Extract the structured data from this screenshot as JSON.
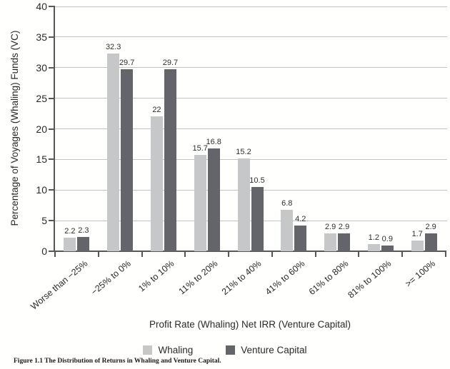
{
  "figure": {
    "caption": "Figure 1.1 The Distribution of Returns in Whaling and Venture Capital."
  },
  "chart_data": {
    "type": "bar",
    "title": "",
    "categories": [
      "Worse than −25%",
      "−25% to 0%",
      "1% to 10%",
      "11% to 20%",
      "21% to 40%",
      "41% to 60%",
      "61% to 80%",
      "81% to 100%",
      ">= 100%"
    ],
    "series": [
      {
        "name": "Whaling",
        "color": "#c5c7c9",
        "values": [
          2.2,
          32.3,
          22,
          15.7,
          15.2,
          6.8,
          2.9,
          1.2,
          1.7
        ]
      },
      {
        "name": "Venture Capital",
        "color": "#63656a",
        "values": [
          2.3,
          29.7,
          29.7,
          16.8,
          10.5,
          4.2,
          2.9,
          0.9,
          2.9
        ]
      }
    ],
    "xlabel": "Profit Rate (Whaling) Net IRR (Venture Capital)",
    "ylabel": "Percentage of Voyages (Whaling) Funds (VC)",
    "ylim": [
      0,
      40
    ],
    "ytick_step": 5,
    "grid": true,
    "legend_position": "bottom",
    "colors": {
      "grid": "#c3c3c3",
      "axis": "#55575b",
      "text": "#2a2a2a"
    }
  }
}
